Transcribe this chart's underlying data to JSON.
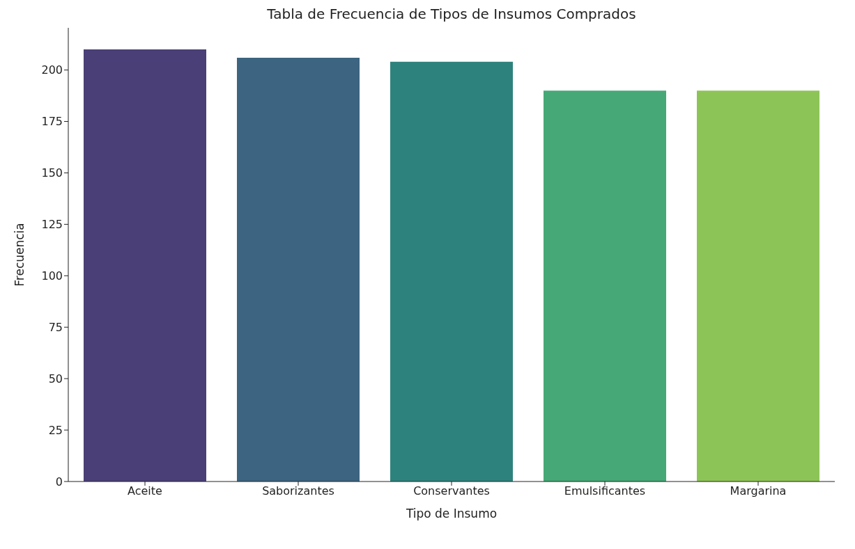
{
  "chart_data": {
    "type": "bar",
    "title": "Tabla de Frecuencia de Tipos de Insumos Comprados",
    "xlabel": "Tipo de Insumo",
    "ylabel": "Frecuencia",
    "categories": [
      "Aceite",
      "Saborizantes",
      "Conservantes",
      "Emulsificantes",
      "Margarina"
    ],
    "values": [
      210,
      206,
      204,
      190,
      190
    ],
    "colors": [
      "#4a3f76",
      "#3d6480",
      "#2e827d",
      "#46a876",
      "#8dc457"
    ],
    "ylim": [
      0,
      220.5
    ],
    "yticks": [
      0,
      25,
      50,
      75,
      100,
      125,
      150,
      175,
      200
    ],
    "grid": false,
    "legend": false
  }
}
